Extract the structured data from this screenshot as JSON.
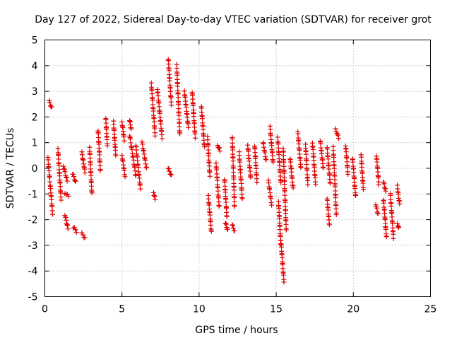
{
  "chart_data": {
    "type": "scatter",
    "title": "Day 127 of 2022, Sidereal Day-to-day VTEC variation (SDTVAR) for receiver grot",
    "xlabel": "GPS time / hours",
    "ylabel": "SDTVAR / TECUs",
    "xlim": [
      0,
      25
    ],
    "ylim": [
      -5,
      5
    ],
    "x_ticks": [
      0,
      5,
      10,
      15,
      20,
      25
    ],
    "x_tick_labels": [
      "0",
      "5",
      "10",
      "15",
      "20",
      "25"
    ],
    "y_ticks": [
      -5,
      -4,
      -3,
      -2,
      -1,
      0,
      1,
      2,
      3,
      4,
      5
    ],
    "y_tick_labels": [
      "-5",
      "-4",
      "-3",
      "-2",
      "-1",
      "0",
      "1",
      "2",
      "3",
      "4",
      "5"
    ],
    "grid": true,
    "marker": "plus",
    "color": "#e00000",
    "series": [
      {
        "name": "SDTVAR",
        "tracks": [
          {
            "t0": 0.28,
            "t1": 0.45,
            "y0": 2.6,
            "y1": 2.35
          },
          {
            "t0": 0.2,
            "t1": 0.5,
            "y0": 0.4,
            "y1": -1.75
          },
          {
            "t0": 0.85,
            "t1": 1.05,
            "y0": 0.75,
            "y1": -1.2
          },
          {
            "t0": 1.3,
            "t1": 1.5,
            "y0": -1.8,
            "y1": -2.35
          },
          {
            "t0": 1.3,
            "t1": 1.55,
            "y0": -0.95,
            "y1": -1.1
          },
          {
            "t0": 1.2,
            "t1": 1.45,
            "y0": 0.1,
            "y1": -0.5
          },
          {
            "t0": 1.8,
            "t1": 2.0,
            "y0": -0.2,
            "y1": -0.55
          },
          {
            "t0": 1.85,
            "t1": 2.05,
            "y0": -2.3,
            "y1": -2.45
          },
          {
            "t0": 2.4,
            "t1": 2.6,
            "y0": -2.55,
            "y1": -2.7
          },
          {
            "t0": 2.4,
            "t1": 2.6,
            "y0": 0.6,
            "y1": -0.15
          },
          {
            "t0": 2.9,
            "t1": 3.05,
            "y0": 0.8,
            "y1": -1.0
          },
          {
            "t0": 3.45,
            "t1": 3.6,
            "y0": 1.5,
            "y1": -0.1
          },
          {
            "t0": 3.95,
            "t1": 4.05,
            "y0": 1.95,
            "y1": 0.9
          },
          {
            "t0": 4.45,
            "t1": 4.6,
            "y0": 1.8,
            "y1": 0.5
          },
          {
            "t0": 5.0,
            "t1": 5.15,
            "y0": 1.8,
            "y1": 1.1
          },
          {
            "t0": 5.0,
            "t1": 5.2,
            "y0": 0.5,
            "y1": -0.3
          },
          {
            "t0": 5.5,
            "t1": 5.6,
            "y0": 1.9,
            "y1": 1.5
          },
          {
            "t0": 5.5,
            "t1": 5.9,
            "y0": 1.3,
            "y1": -0.3
          },
          {
            "t0": 5.9,
            "t1": 6.2,
            "y0": 0.9,
            "y1": -0.8
          },
          {
            "t0": 6.3,
            "t1": 6.6,
            "y0": 1.0,
            "y1": 0.0
          },
          {
            "t0": 6.9,
            "t1": 7.15,
            "y0": 3.3,
            "y1": 1.3
          },
          {
            "t0": 7.05,
            "t1": 7.15,
            "y0": -0.95,
            "y1": -1.2
          },
          {
            "t0": 7.3,
            "t1": 7.6,
            "y0": 3.1,
            "y1": 1.2
          },
          {
            "t0": 8.0,
            "t1": 8.2,
            "y0": 4.25,
            "y1": 2.5
          },
          {
            "t0": 8.0,
            "t1": 8.2,
            "y0": 0.0,
            "y1": -0.3
          },
          {
            "t0": 8.55,
            "t1": 8.75,
            "y0": 4.0,
            "y1": 1.3
          },
          {
            "t0": 9.05,
            "t1": 9.3,
            "y0": 3.0,
            "y1": 1.6
          },
          {
            "t0": 9.55,
            "t1": 9.75,
            "y0": 3.0,
            "y1": 1.2
          },
          {
            "t0": 10.15,
            "t1": 10.35,
            "y0": 2.4,
            "y1": 0.8
          },
          {
            "t0": 10.55,
            "t1": 10.7,
            "y0": 1.2,
            "y1": -0.3
          },
          {
            "t0": 10.6,
            "t1": 10.8,
            "y0": -1.1,
            "y1": -2.5
          },
          {
            "t0": 11.1,
            "t1": 11.3,
            "y0": 0.2,
            "y1": -1.5
          },
          {
            "t0": 11.2,
            "t1": 11.35,
            "y0": 0.9,
            "y1": 0.7
          },
          {
            "t0": 11.65,
            "t1": 11.8,
            "y0": -0.4,
            "y1": -1.9
          },
          {
            "t0": 11.7,
            "t1": 11.85,
            "y0": -2.1,
            "y1": -2.4
          },
          {
            "t0": 12.15,
            "t1": 12.3,
            "y0": 1.2,
            "y1": -1.5
          },
          {
            "t0": 12.15,
            "t1": 12.3,
            "y0": -2.2,
            "y1": -2.45
          },
          {
            "t0": 12.6,
            "t1": 12.8,
            "y0": 0.6,
            "y1": -1.2
          },
          {
            "t0": 13.15,
            "t1": 13.35,
            "y0": 0.9,
            "y1": -0.4
          },
          {
            "t0": 13.6,
            "t1": 13.75,
            "y0": 0.9,
            "y1": -0.5
          },
          {
            "t0": 14.15,
            "t1": 14.35,
            "y0": 1.0,
            "y1": 0.3
          },
          {
            "t0": 14.6,
            "t1": 14.8,
            "y0": 1.6,
            "y1": 0.2
          },
          {
            "t0": 14.5,
            "t1": 14.7,
            "y0": -0.5,
            "y1": -1.4
          },
          {
            "t0": 15.1,
            "t1": 15.3,
            "y0": 1.2,
            "y1": -0.6
          },
          {
            "t0": 15.15,
            "t1": 15.3,
            "y0": -1.3,
            "y1": -3.0
          },
          {
            "t0": 15.3,
            "t1": 15.5,
            "y0": -2.8,
            "y1": -4.4
          },
          {
            "t0": 15.45,
            "t1": 15.65,
            "y0": 0.8,
            "y1": -2.4
          },
          {
            "t0": 15.9,
            "t1": 16.1,
            "y0": 0.4,
            "y1": -0.8
          },
          {
            "t0": 16.4,
            "t1": 16.6,
            "y0": 1.4,
            "y1": 0.0
          },
          {
            "t0": 16.9,
            "t1": 17.05,
            "y0": 0.9,
            "y1": -0.6
          },
          {
            "t0": 17.35,
            "t1": 17.55,
            "y0": 1.0,
            "y1": -0.6
          },
          {
            "t0": 17.85,
            "t1": 18.05,
            "y0": 1.1,
            "y1": 0.0
          },
          {
            "t0": 18.3,
            "t1": 18.5,
            "y0": 0.8,
            "y1": -0.6
          },
          {
            "t0": 18.3,
            "t1": 18.45,
            "y0": -1.2,
            "y1": -2.2
          },
          {
            "t0": 18.7,
            "t1": 18.9,
            "y0": 0.8,
            "y1": -1.8
          },
          {
            "t0": 18.85,
            "t1": 19.05,
            "y0": 1.5,
            "y1": 1.2
          },
          {
            "t0": 19.5,
            "t1": 19.65,
            "y0": 0.9,
            "y1": -0.2
          },
          {
            "t0": 19.95,
            "t1": 20.15,
            "y0": 0.4,
            "y1": -1.1
          },
          {
            "t0": 20.5,
            "t1": 20.65,
            "y0": 0.5,
            "y1": -0.8
          },
          {
            "t0": 21.5,
            "t1": 21.65,
            "y0": 0.5,
            "y1": -0.6
          },
          {
            "t0": 21.45,
            "t1": 21.6,
            "y0": -1.4,
            "y1": -1.8
          },
          {
            "t0": 21.95,
            "t1": 22.1,
            "y0": -0.5,
            "y1": -0.9
          },
          {
            "t0": 21.95,
            "t1": 22.15,
            "y0": -1.2,
            "y1": -2.7
          },
          {
            "t0": 22.4,
            "t1": 22.6,
            "y0": -1.0,
            "y1": -2.7
          },
          {
            "t0": 22.85,
            "t1": 23.0,
            "y0": -0.7,
            "y1": -1.4
          },
          {
            "t0": 22.85,
            "t1": 22.95,
            "y0": -2.2,
            "y1": -2.3
          }
        ]
      }
    ]
  }
}
